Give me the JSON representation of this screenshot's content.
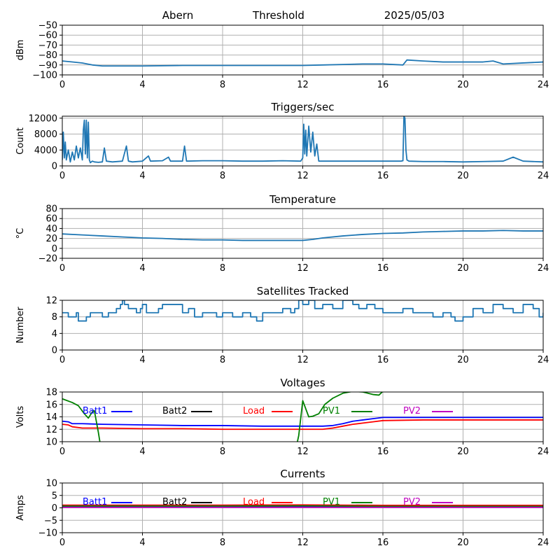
{
  "header": {
    "station": "Abern",
    "mode": "Threshold",
    "date": "2025/05/03"
  },
  "chart_data": [
    {
      "id": "threshold",
      "type": "line",
      "title": "",
      "ylabel": "dBm",
      "xlim": [
        0,
        24
      ],
      "ylim": [
        -100,
        -50
      ],
      "xticks": [
        "0",
        "4",
        "8",
        "12",
        "16",
        "20",
        "24"
      ],
      "yticks": [
        "−50",
        "−60",
        "−70",
        "−80",
        "−90",
        "−100"
      ],
      "series": [
        {
          "color": "#1f77b4",
          "x": [
            0,
            0.5,
            1,
            1.5,
            2,
            3,
            4,
            6,
            8,
            10,
            12,
            13,
            14,
            15,
            16,
            17,
            17.2,
            18,
            19,
            20,
            21,
            21.5,
            22,
            23,
            24
          ],
          "y": [
            -86,
            -87,
            -88,
            -90,
            -91,
            -91,
            -91,
            -90.5,
            -90.5,
            -90.5,
            -90.5,
            -90,
            -89.5,
            -89,
            -89,
            -90,
            -85,
            -86,
            -87,
            -87,
            -87,
            -86,
            -89,
            -88,
            -87
          ]
        }
      ]
    },
    {
      "id": "triggers",
      "type": "line",
      "title": "Triggers/sec",
      "ylabel": "Count",
      "xlim": [
        0,
        24
      ],
      "ylim": [
        0,
        12500
      ],
      "xticks": [
        "0",
        "4",
        "8",
        "12",
        "16",
        "20",
        "24"
      ],
      "yticks": [
        "0",
        "4000",
        "8000",
        "12000"
      ],
      "series": [
        {
          "color": "#1f77b4",
          "x": [
            0,
            0.05,
            0.1,
            0.15,
            0.2,
            0.3,
            0.4,
            0.5,
            0.6,
            0.7,
            0.8,
            0.9,
            1.0,
            1.05,
            1.1,
            1.15,
            1.2,
            1.25,
            1.3,
            1.35,
            1.4,
            1.5,
            1.6,
            1.8,
            2.0,
            2.1,
            2.2,
            2.5,
            3.0,
            3.2,
            3.3,
            3.5,
            4.0,
            4.3,
            4.4,
            5.0,
            5.3,
            5.4,
            6.0,
            6.1,
            6.2,
            7.0,
            8.0,
            9.0,
            10.0,
            11.0,
            11.9,
            12.0,
            12.05,
            12.1,
            12.15,
            12.2,
            12.3,
            12.4,
            12.5,
            12.6,
            12.7,
            12.8,
            13.0,
            14.0,
            15.0,
            16.0,
            16.9,
            17.0,
            17.05,
            17.1,
            17.15,
            17.2,
            17.3,
            18.0,
            19.0,
            20.0,
            21.0,
            22.0,
            22.5,
            23.0,
            24.0
          ],
          "y": [
            1500,
            8500,
            2000,
            6000,
            1500,
            4000,
            1000,
            3500,
            1500,
            5000,
            2000,
            4500,
            1500,
            9000,
            11500,
            3000,
            11500,
            2000,
            11000,
            1500,
            800,
            1200,
            1000,
            900,
            1000,
            4500,
            1200,
            1000,
            1200,
            5000,
            1200,
            1000,
            1200,
            2500,
            1200,
            1300,
            2200,
            1200,
            1200,
            5000,
            1200,
            1300,
            1300,
            1200,
            1200,
            1300,
            1200,
            2000,
            10500,
            3000,
            9000,
            2500,
            10000,
            3500,
            8500,
            2500,
            5500,
            1200,
            1200,
            1200,
            1200,
            1200,
            1200,
            1300,
            12500,
            12000,
            4000,
            1500,
            1200,
            1100,
            1100,
            1000,
            1100,
            1200,
            2200,
            1200,
            1000
          ]
        }
      ]
    },
    {
      "id": "temperature",
      "type": "line",
      "title": "Temperature",
      "ylabel": "°C",
      "xlim": [
        0,
        24
      ],
      "ylim": [
        -20,
        80
      ],
      "xticks": [
        "0",
        "4",
        "8",
        "12",
        "16",
        "20",
        "24"
      ],
      "yticks": [
        "80",
        "60",
        "40",
        "20",
        "0",
        "−20"
      ],
      "series": [
        {
          "color": "#1f77b4",
          "x": [
            0,
            1,
            2,
            3,
            4,
            5,
            6,
            7,
            8,
            9,
            10,
            11,
            12,
            12.5,
            13,
            14,
            15,
            16,
            17,
            18,
            19,
            20,
            21,
            22,
            23,
            24
          ],
          "y": [
            29,
            27,
            25,
            23,
            21,
            20,
            18,
            17,
            17,
            16,
            16,
            16,
            16,
            18,
            21,
            25,
            28,
            30,
            31,
            33,
            34,
            35,
            35,
            36,
            35,
            35
          ]
        }
      ]
    },
    {
      "id": "satellites",
      "type": "line",
      "title": "Satellites Tracked",
      "ylabel": "Number",
      "xlim": [
        0,
        24
      ],
      "ylim": [
        0,
        12
      ],
      "xticks": [
        "0",
        "4",
        "8",
        "12",
        "16",
        "20",
        "24"
      ],
      "yticks": [
        "0",
        "4",
        "8",
        "12"
      ],
      "series": [
        {
          "color": "#1f77b4",
          "x": [
            0,
            0.3,
            0.6,
            0.7,
            0.8,
            1.2,
            1.4,
            1.8,
            2.0,
            2.3,
            2.7,
            2.9,
            3.0,
            3.1,
            3.3,
            3.7,
            3.9,
            4.0,
            4.2,
            4.5,
            4.8,
            5.0,
            5.5,
            6.0,
            6.3,
            6.6,
            7.0,
            7.3,
            7.7,
            8.0,
            8.5,
            9.0,
            9.4,
            9.7,
            10.0,
            10.5,
            11.0,
            11.4,
            11.6,
            11.8,
            12.0,
            12.3,
            12.6,
            13.0,
            13.5,
            14.0,
            14.5,
            14.8,
            15.2,
            15.6,
            16.0,
            16.5,
            17.0,
            17.5,
            18.0,
            18.5,
            19.0,
            19.4,
            19.6,
            20.0,
            20.5,
            21.0,
            21.5,
            22.0,
            22.5,
            23.0,
            23.5,
            23.8,
            24.0
          ],
          "y": [
            9,
            8,
            8,
            9,
            7,
            8,
            9,
            9,
            8,
            9,
            10,
            11,
            12,
            11,
            10,
            9,
            10,
            11,
            9,
            9,
            10,
            11,
            11,
            9,
            10,
            8,
            9,
            9,
            8,
            9,
            8,
            9,
            8,
            7,
            9,
            9,
            10,
            9,
            10,
            12,
            11,
            12,
            10,
            11,
            10,
            12,
            11,
            10,
            11,
            10,
            9,
            9,
            10,
            9,
            9,
            8,
            9,
            8,
            7,
            8,
            10,
            9,
            11,
            10,
            9,
            11,
            10,
            8,
            9
          ]
        }
      ]
    },
    {
      "id": "voltages",
      "type": "line",
      "title": "Voltages",
      "ylabel": "Volts",
      "xlim": [
        0,
        24
      ],
      "ylim": [
        10,
        18
      ],
      "xticks": [
        "0",
        "4",
        "8",
        "12",
        "16",
        "20",
        "24"
      ],
      "yticks": [
        "18",
        "16",
        "14",
        "12",
        "10"
      ],
      "series": [
        {
          "name": "Batt1",
          "color": "#0000ff",
          "x": [
            0,
            0.3,
            0.5,
            1,
            2,
            4,
            6,
            8,
            10,
            12,
            13,
            13.5,
            14,
            14.5,
            15,
            15.5,
            16,
            18,
            20,
            22,
            24
          ],
          "y": [
            13.3,
            13.2,
            12.9,
            12.9,
            12.8,
            12.7,
            12.6,
            12.6,
            12.5,
            12.5,
            12.5,
            12.6,
            12.9,
            13.3,
            13.5,
            13.7,
            13.9,
            13.9,
            13.9,
            13.9,
            13.9
          ]
        },
        {
          "name": "Batt2",
          "color": "#000000",
          "x": [],
          "y": []
        },
        {
          "name": "Load",
          "color": "#ff0000",
          "x": [
            0,
            0.3,
            0.5,
            1,
            2,
            4,
            6,
            8,
            10,
            12,
            13,
            13.5,
            14,
            14.5,
            15,
            15.5,
            16,
            18,
            20,
            22,
            24
          ],
          "y": [
            12.8,
            12.7,
            12.4,
            12.2,
            12.2,
            12.1,
            12.1,
            12.0,
            12.0,
            12.0,
            12.0,
            12.2,
            12.5,
            12.8,
            13.0,
            13.2,
            13.4,
            13.5,
            13.5,
            13.5,
            13.5
          ]
        },
        {
          "name": "PV1",
          "color": "#008000",
          "x": [
            0,
            0.5,
            0.8,
            1.1,
            1.3,
            1.5,
            1.6,
            1.8,
            1.9,
            11.7,
            11.8,
            12.0,
            12.3,
            12.5,
            12.8,
            13.1,
            13.5,
            14.0,
            14.5,
            15.0,
            15.5,
            15.8,
            16.0
          ],
          "y": [
            16.9,
            16.3,
            15.8,
            14.5,
            13.8,
            14.8,
            15.0,
            11.5,
            9.5,
            9.5,
            11.0,
            16.6,
            14.0,
            14.1,
            14.5,
            16.0,
            17.0,
            17.8,
            18.1,
            18.0,
            17.6,
            17.5,
            18.1
          ]
        },
        {
          "name": "PV2",
          "color": "#bf00bf",
          "x": [],
          "y": []
        }
      ]
    },
    {
      "id": "currents",
      "type": "line",
      "title": "Currents",
      "ylabel": "Amps",
      "xlim": [
        0,
        24
      ],
      "ylim": [
        -10,
        10
      ],
      "xticks": [
        "0",
        "4",
        "8",
        "12",
        "16",
        "20",
        "24"
      ],
      "yticks": [
        "10",
        "5",
        "0",
        "−5",
        "−10"
      ],
      "series": [
        {
          "name": "Batt1",
          "color": "#0000ff",
          "x": [
            0,
            4,
            8,
            12,
            16,
            20,
            24
          ],
          "y": [
            0.3,
            0.3,
            0.3,
            0.3,
            0.3,
            0.3,
            0.3
          ]
        },
        {
          "name": "Batt2",
          "color": "#000000",
          "x": [],
          "y": []
        },
        {
          "name": "Load",
          "color": "#ff0000",
          "x": [
            0,
            4,
            8,
            12,
            16,
            20,
            24
          ],
          "y": [
            1.1,
            1.1,
            1.1,
            1.2,
            1.0,
            1.0,
            1.0
          ]
        },
        {
          "name": "PV1",
          "color": "#008000",
          "x": [
            0,
            4,
            8,
            12,
            16,
            20,
            24
          ],
          "y": [
            0.7,
            0.7,
            0.7,
            0.8,
            0.6,
            0.6,
            0.6
          ]
        },
        {
          "name": "PV2",
          "color": "#bf00bf",
          "x": [
            0,
            4,
            8,
            12,
            16,
            20,
            24
          ],
          "y": [
            0.2,
            0.2,
            0.2,
            0.2,
            0.2,
            0.2,
            0.2
          ]
        }
      ]
    }
  ]
}
